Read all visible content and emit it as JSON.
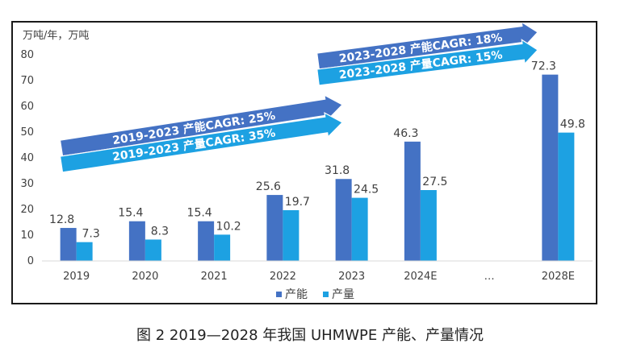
{
  "caption": "图 2  2019—2028 年我国 UHMWPE 产能、产量情况",
  "chart_data": {
    "type": "bar",
    "unit_label": "万吨/年，万吨",
    "categories": [
      "2019",
      "2020",
      "2021",
      "2022",
      "2023",
      "2024E",
      "…",
      "2028E"
    ],
    "series": [
      {
        "name": "产能",
        "color": "#4472C4",
        "values": [
          12.8,
          15.4,
          15.4,
          25.6,
          31.8,
          46.3,
          null,
          72.3
        ]
      },
      {
        "name": "产量",
        "color": "#1DA1E2",
        "values": [
          7.3,
          8.3,
          10.2,
          19.7,
          24.5,
          27.5,
          null,
          49.8
        ]
      }
    ],
    "data_labels": {
      "capacity": [
        "12.8",
        "15.4",
        "15.4",
        "25.6",
        "31.8",
        "46.3",
        "",
        "72.3"
      ],
      "output": [
        "7.3",
        "8.3",
        "10.2",
        "19.7",
        "24.5",
        "27.5",
        "",
        "49.8"
      ]
    },
    "ylim": [
      0,
      80
    ],
    "yticks": [
      0,
      10,
      20,
      30,
      40,
      50,
      60,
      70,
      80
    ],
    "grid": false,
    "legend_position": "bottom",
    "annotations": [
      {
        "text": "2019-2023 产能CAGR: 25%",
        "color": "#4472C4"
      },
      {
        "text": "2019-2023 产量CAGR: 35%",
        "color": "#1DA1E2"
      },
      {
        "text": "2023-2028 产能CAGR: 18%",
        "color": "#4472C4"
      },
      {
        "text": "2023-2028 产量CAGR: 15%",
        "color": "#1DA1E2"
      }
    ]
  }
}
